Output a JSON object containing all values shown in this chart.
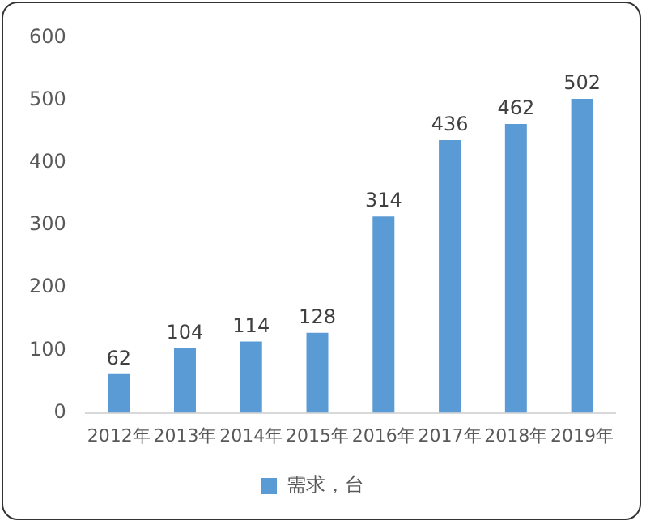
{
  "chart_data": {
    "type": "bar",
    "categories": [
      "2012年",
      "2013年",
      "2014年",
      "2015年",
      "2016年",
      "2017年",
      "2018年",
      "2019年"
    ],
    "series": [
      {
        "name": "需求，台",
        "color": "#5b9bd5",
        "values": [
          62,
          104,
          114,
          128,
          314,
          436,
          462,
          502
        ]
      }
    ],
    "ylim": [
      0,
      600
    ],
    "yticks": [
      0,
      100,
      200,
      300,
      400,
      500,
      600
    ],
    "grid": false,
    "legend": "bottom",
    "data_labels": true
  }
}
